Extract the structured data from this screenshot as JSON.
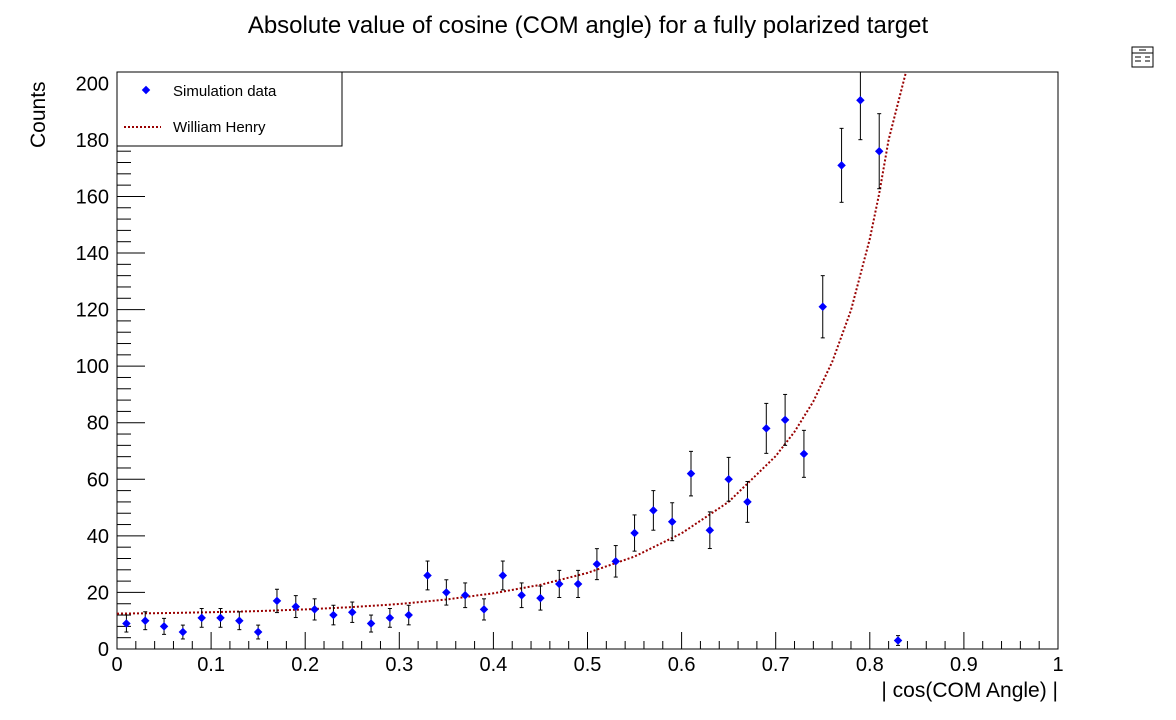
{
  "chart_data": {
    "type": "scatter",
    "title": "Absolute value of cosine (COM angle) for a fully polarized target",
    "xlabel": "| cos(COM Angle) |",
    "ylabel": "Counts",
    "xlim": [
      0,
      1
    ],
    "ylim": [
      0,
      204
    ],
    "x_ticks": [
      "0",
      "0.1",
      "0.2",
      "0.3",
      "0.4",
      "0.5",
      "0.6",
      "0.7",
      "0.8",
      "0.9",
      "1"
    ],
    "y_ticks": [
      "0",
      "20",
      "40",
      "60",
      "80",
      "100",
      "120",
      "140",
      "160",
      "180",
      "200"
    ],
    "legend_position": "top-left",
    "series": [
      {
        "name": "Simulation data",
        "kind": "points-with-errors",
        "color": "#0000ff",
        "x": [
          0.01,
          0.03,
          0.05,
          0.07,
          0.09,
          0.11,
          0.13,
          0.15,
          0.17,
          0.19,
          0.21,
          0.23,
          0.25,
          0.27,
          0.29,
          0.31,
          0.33,
          0.35,
          0.37,
          0.39,
          0.41,
          0.43,
          0.45,
          0.47,
          0.49,
          0.51,
          0.53,
          0.55,
          0.57,
          0.59,
          0.61,
          0.63,
          0.65,
          0.67,
          0.69,
          0.71,
          0.73,
          0.75,
          0.77,
          0.79,
          0.81,
          0.83
        ],
        "y": [
          9,
          10,
          8,
          6,
          11,
          11,
          10,
          6,
          17,
          15,
          14,
          12,
          13,
          9,
          11,
          12,
          26,
          20,
          19,
          14,
          26,
          19,
          18,
          23,
          23,
          30,
          31,
          41,
          49,
          45,
          62,
          42,
          60,
          52,
          78,
          81,
          69,
          121,
          171,
          194,
          176,
          3
        ]
      },
      {
        "name": "William Henry",
        "kind": "dotted-curve",
        "color": "#990000",
        "x": [
          0.0,
          0.05,
          0.1,
          0.15,
          0.2,
          0.25,
          0.3,
          0.35,
          0.4,
          0.45,
          0.5,
          0.55,
          0.6,
          0.65,
          0.7,
          0.72,
          0.74,
          0.76,
          0.78,
          0.8,
          0.81,
          0.82,
          0.83,
          0.84
        ],
        "y": [
          12.5,
          12.7,
          13.0,
          13.4,
          14.0,
          14.8,
          15.9,
          17.5,
          19.7,
          22.7,
          26.9,
          32.7,
          40.9,
          52.0,
          68.2,
          76.8,
          87.5,
          101.5,
          119.8,
          145.0,
          161.0,
          180.0,
          193.0,
          206.0
        ]
      }
    ]
  },
  "stats_box_icon": "stats-box-icon"
}
